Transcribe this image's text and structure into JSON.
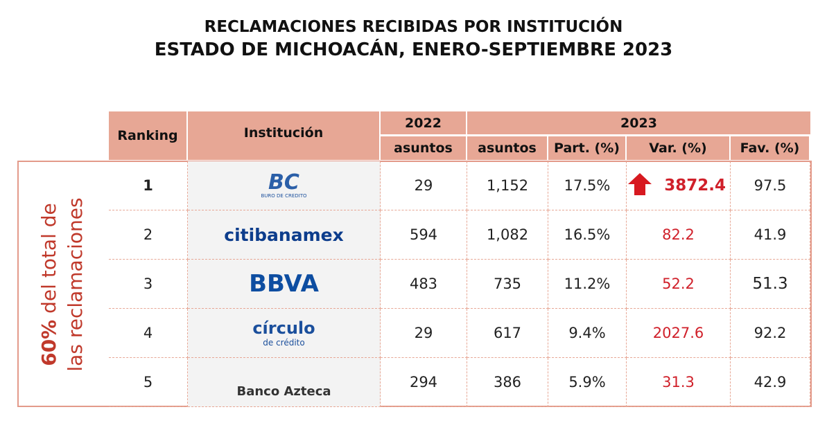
{
  "header": {
    "title": "RECLAMACIONES RECIBIDAS POR INSTITUCIÓN",
    "subtitle": "ESTADO DE MICHOACÁN, ENERO-SEPTIEMBRE 2023"
  },
  "side_label": {
    "bold": "60%",
    "rest": "del total de las reclamaciones"
  },
  "table": {
    "headers": {
      "ranking": "Ranking",
      "institucion": "Institución",
      "year_a": "2022",
      "year_b": "2023",
      "columns": [
        "asuntos",
        "asuntos",
        "Part. (%)",
        "Var. (%)",
        "Fav. (%)"
      ]
    },
    "rows": [
      {
        "rank": "1",
        "logo": {
          "text": "BC",
          "sub": "BURO DE CREDITO"
        },
        "cells": [
          "29",
          "1,152",
          "17.5%",
          "3872.4",
          "97.5"
        ]
      },
      {
        "rank": "2",
        "logo": {
          "text": "citibanamex"
        },
        "cells": [
          "594",
          "1,082",
          "16.5%",
          "82.2",
          "41.9"
        ]
      },
      {
        "rank": "3",
        "logo": {
          "text": "BBVA"
        },
        "cells": [
          "483",
          "735",
          "11.2%",
          "52.2",
          "51.3"
        ]
      },
      {
        "rank": "4",
        "logo": {
          "text": "círculo",
          "sub": "de crédito"
        },
        "cells": [
          "29",
          "617",
          "9.4%",
          "2027.6",
          "92.2"
        ]
      },
      {
        "rank": "5",
        "logo": {
          "text": "Banco Azteca"
        },
        "cells": [
          "294",
          "386",
          "5.9%",
          "31.3",
          "42.9"
        ]
      }
    ]
  }
}
